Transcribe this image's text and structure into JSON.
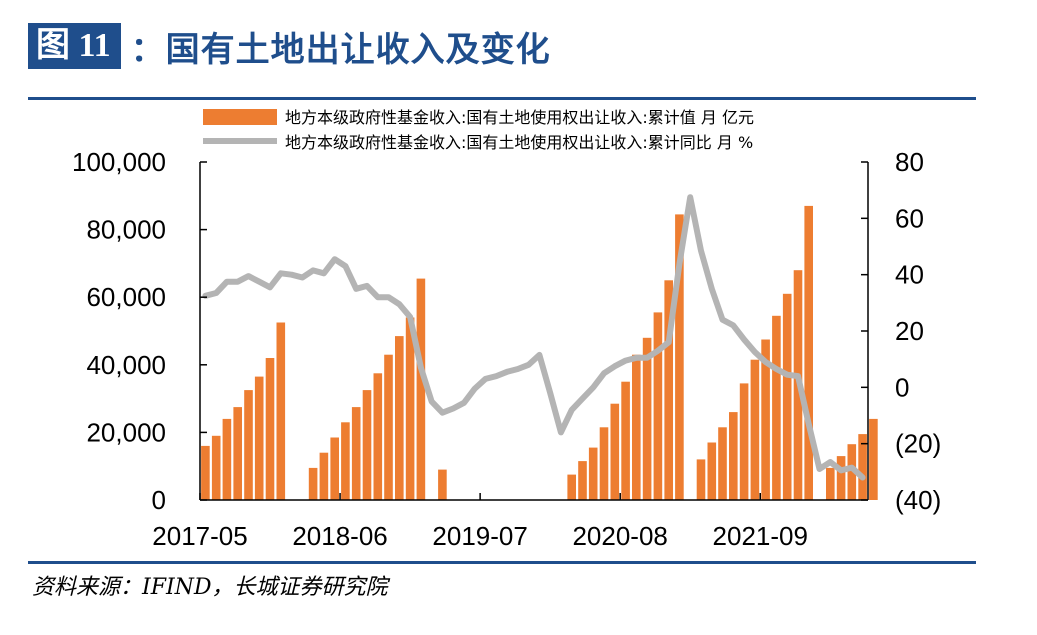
{
  "header": {
    "badge": "图 11",
    "title": "：国有土地出让收入及变化"
  },
  "source": "资料来源：IFIND，长城证券研究院",
  "colors": {
    "bar": "#ed7d31",
    "line": "#b4b4b4",
    "negative_tick": "#e00000",
    "accent": "#1f4e8c"
  },
  "chart_data": {
    "type": "bar",
    "title": "",
    "legend_placement": "top",
    "grid": false,
    "x_tick_labels": [
      "2017-05",
      "2018-06",
      "2019-07",
      "2020-08",
      "2021-09"
    ],
    "x_tick_months": [
      "2017-05",
      "2018-06",
      "2019-07",
      "2020-08",
      "2021-09"
    ],
    "y_left": {
      "min": 0,
      "max": 100000,
      "ticks": [
        "100,000",
        "80,000",
        "60,000",
        "40,000",
        "20,000",
        "0"
      ]
    },
    "y_right": {
      "min": -40,
      "max": 80,
      "ticks": [
        "80",
        "60",
        "40",
        "20",
        "0",
        "(20)",
        "(40)"
      ],
      "negative_ticks": [
        "(20)",
        "(40)"
      ]
    },
    "series": [
      {
        "name": "地方本级政府性基金收入:国有土地使用权出让收入:累计值 月 亿元",
        "type": "bar",
        "axis": "left",
        "points": [
          [
            "2017-05",
            16000
          ],
          [
            "2017-06",
            19000
          ],
          [
            "2017-07",
            24000
          ],
          [
            "2017-08",
            27500
          ],
          [
            "2017-09",
            32500
          ],
          [
            "2017-10",
            36500
          ],
          [
            "2017-11",
            42000
          ],
          [
            "2017-12",
            52500
          ],
          [
            "2018-03",
            9500
          ],
          [
            "2018-04",
            14000
          ],
          [
            "2018-05",
            18500
          ],
          [
            "2018-06",
            23000
          ],
          [
            "2018-07",
            27500
          ],
          [
            "2018-08",
            32500
          ],
          [
            "2018-09",
            37500
          ],
          [
            "2018-10",
            43000
          ],
          [
            "2018-11",
            48500
          ],
          [
            "2018-12",
            54000
          ],
          [
            "2019-01",
            65500
          ],
          [
            "2019-03",
            9000
          ],
          [
            "2020-03",
            7500
          ],
          [
            "2020-04",
            11500
          ],
          [
            "2020-05",
            15500
          ],
          [
            "2020-06",
            21500
          ],
          [
            "2020-07",
            28500
          ],
          [
            "2020-08",
            35000
          ],
          [
            "2020-09",
            43000
          ],
          [
            "2020-10",
            48000
          ],
          [
            "2020-11",
            55500
          ],
          [
            "2020-12",
            65000
          ],
          [
            "2021-01",
            84500
          ],
          [
            "2021-03",
            12000
          ],
          [
            "2021-04",
            17000
          ],
          [
            "2021-05",
            21500
          ],
          [
            "2021-06",
            26000
          ],
          [
            "2021-07",
            34500
          ],
          [
            "2021-08",
            41500
          ],
          [
            "2021-09",
            47500
          ],
          [
            "2021-10",
            54500
          ],
          [
            "2021-11",
            61000
          ],
          [
            "2021-12",
            68000
          ],
          [
            "2022-01",
            87000
          ],
          [
            "2022-03",
            9500
          ],
          [
            "2022-04",
            13000
          ],
          [
            "2022-05",
            16500
          ],
          [
            "2022-06",
            19500
          ],
          [
            "2022-07",
            24000
          ]
        ]
      },
      {
        "name": "地方本级政府性基金收入:国有土地使用权出让收入:累计同比 月 %",
        "type": "line",
        "axis": "right",
        "points": [
          [
            "2017-05",
            32.5
          ],
          [
            "2017-06",
            33.5
          ],
          [
            "2017-07",
            37.5
          ],
          [
            "2017-08",
            37.5
          ],
          [
            "2017-09",
            39.5
          ],
          [
            "2017-10",
            37.5
          ],
          [
            "2017-11",
            35.5
          ],
          [
            "2017-12",
            40.5
          ],
          [
            "2018-01",
            40.0
          ],
          [
            "2018-02",
            39.0
          ],
          [
            "2018-03",
            41.5
          ],
          [
            "2018-04",
            40.5
          ],
          [
            "2018-05",
            45.5
          ],
          [
            "2018-06",
            43.0
          ],
          [
            "2018-07",
            35.0
          ],
          [
            "2018-08",
            36.0
          ],
          [
            "2018-09",
            32.0
          ],
          [
            "2018-10",
            32.0
          ],
          [
            "2018-11",
            29.5
          ],
          [
            "2018-12",
            25.0
          ],
          [
            "2019-01",
            7.0
          ],
          [
            "2019-02",
            -5.0
          ],
          [
            "2019-03",
            -9.0
          ],
          [
            "2019-04",
            -7.5
          ],
          [
            "2019-05",
            -5.5
          ],
          [
            "2019-06",
            -0.5
          ],
          [
            "2019-07",
            3.0
          ],
          [
            "2019-08",
            4.0
          ],
          [
            "2019-09",
            5.5
          ],
          [
            "2019-10",
            6.5
          ],
          [
            "2019-11",
            8.0
          ],
          [
            "2019-12",
            11.5
          ],
          [
            "2020-01",
            -2.0
          ],
          [
            "2020-02",
            -16.0
          ],
          [
            "2020-03",
            -8.0
          ],
          [
            "2020-04",
            -4.0
          ],
          [
            "2020-05",
            0.0
          ],
          [
            "2020-06",
            5.0
          ],
          [
            "2020-07",
            7.5
          ],
          [
            "2020-08",
            9.5
          ],
          [
            "2020-09",
            10.5
          ],
          [
            "2020-10",
            10.5
          ],
          [
            "2020-11",
            13.0
          ],
          [
            "2020-12",
            16.0
          ],
          [
            "2021-01",
            44.0
          ],
          [
            "2021-02",
            67.5
          ],
          [
            "2021-03",
            48.5
          ],
          [
            "2021-04",
            35.0
          ],
          [
            "2021-05",
            24.0
          ],
          [
            "2021-06",
            22.0
          ],
          [
            "2021-07",
            17.0
          ],
          [
            "2021-08",
            12.5
          ],
          [
            "2021-09",
            9.0
          ],
          [
            "2021-10",
            6.5
          ],
          [
            "2021-11",
            4.5
          ],
          [
            "2021-12",
            4.0
          ],
          [
            "2022-01",
            -13.0
          ],
          [
            "2022-02",
            -29.0
          ],
          [
            "2022-03",
            -26.5
          ],
          [
            "2022-04",
            -29.5
          ],
          [
            "2022-05",
            -28.5
          ],
          [
            "2022-06",
            -32.0
          ]
        ]
      }
    ]
  }
}
